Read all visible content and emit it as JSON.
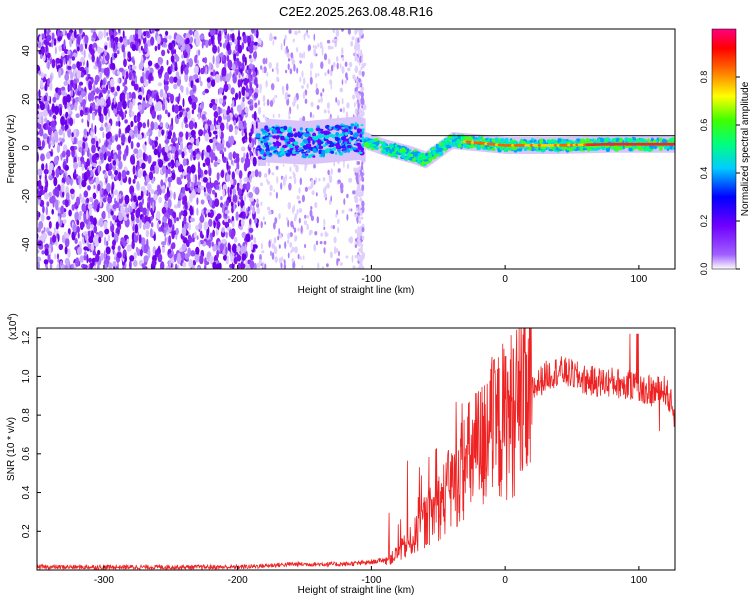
{
  "figure_title": "C2E2.2025.263.08.48.R16",
  "colors": {
    "snr_line": "#ee2222",
    "scatter_purple": "#6a00e8",
    "axis": "#000000"
  },
  "chart_data": [
    {
      "type": "heatmap",
      "title": "C2E2.2025.263.08.48.R16",
      "xlabel": "Height of straight line (km)",
      "ylabel": "Frequency (Hz)",
      "xlim": [
        -350,
        127
      ],
      "ylim": [
        -50,
        49
      ],
      "x_ticks": [
        -300,
        -200,
        -100,
        0,
        100
      ],
      "y_ticks": [
        -40,
        -20,
        0,
        20,
        40
      ],
      "colorbar": {
        "label": "Normalized spectral amplitude",
        "range": [
          0,
          1
        ],
        "ticks": [
          0.0,
          0.2,
          0.4,
          0.6,
          0.8
        ],
        "tick_labels": [
          "0.0",
          "0.2",
          "0.4",
          "0.6",
          "0.8"
        ],
        "colors": [
          "#ffffff",
          "#8b00ff",
          "#0000ff",
          "#00ffff",
          "#00ff00",
          "#ffff00",
          "#ff0000",
          "#ff0080"
        ]
      },
      "regions": [
        {
          "x_range": [
            -350,
            -185
          ],
          "description_level": 0.25
        },
        {
          "x_range": [
            -185,
            -105
          ],
          "frequency_center": 2,
          "spread": 8,
          "level": 0.45
        },
        {
          "x_range": [
            -105,
            127
          ],
          "frequency_center": 1.5,
          "spread": 3,
          "level": 0.85
        }
      ],
      "ridge": [
        {
          "x": -180,
          "y": 3
        },
        {
          "x": -150,
          "y": 2
        },
        {
          "x": -110,
          "y": 4
        },
        {
          "x": -90,
          "y": 0
        },
        {
          "x": -70,
          "y": -3
        },
        {
          "x": -60,
          "y": -5
        },
        {
          "x": -40,
          "y": 3
        },
        {
          "x": -20,
          "y": 2
        },
        {
          "x": 0,
          "y": 1
        },
        {
          "x": 40,
          "y": 1
        },
        {
          "x": 80,
          "y": 1.5
        },
        {
          "x": 127,
          "y": 1.5
        }
      ]
    },
    {
      "type": "line",
      "xlabel": "Height of straight line (km)",
      "ylabel": "SNR (10 * v/v)",
      "y_scale_label": "(x10",
      "y_scale_exp": "4",
      "y_scale_close": ")",
      "xlim": [
        -350,
        127
      ],
      "ylim": [
        0,
        1.25
      ],
      "x_ticks": [
        -300,
        -200,
        -100,
        0,
        100
      ],
      "y_ticks": [
        0.2,
        0.4,
        0.6,
        0.8,
        1.0,
        1.2
      ],
      "envelope": [
        {
          "x": -350,
          "y": 0.015
        },
        {
          "x": -200,
          "y": 0.015
        },
        {
          "x": -185,
          "y": 0.02
        },
        {
          "x": -160,
          "y": 0.03
        },
        {
          "x": -120,
          "y": 0.03
        },
        {
          "x": -100,
          "y": 0.04
        },
        {
          "x": -85,
          "y": 0.06
        },
        {
          "x": -70,
          "y": 0.15
        },
        {
          "x": -60,
          "y": 0.25
        },
        {
          "x": -50,
          "y": 0.33
        },
        {
          "x": -40,
          "y": 0.42
        },
        {
          "x": -30,
          "y": 0.55
        },
        {
          "x": -20,
          "y": 0.62
        },
        {
          "x": -10,
          "y": 0.7
        },
        {
          "x": 0,
          "y": 0.78
        },
        {
          "x": 10,
          "y": 0.84
        },
        {
          "x": 20,
          "y": 0.93
        },
        {
          "x": 30,
          "y": 1.0
        },
        {
          "x": 40,
          "y": 1.03
        },
        {
          "x": 50,
          "y": 1.01
        },
        {
          "x": 60,
          "y": 0.98
        },
        {
          "x": 70,
          "y": 0.97
        },
        {
          "x": 80,
          "y": 0.97
        },
        {
          "x": 90,
          "y": 0.96
        },
        {
          "x": 100,
          "y": 0.94
        },
        {
          "x": 110,
          "y": 0.92
        },
        {
          "x": 120,
          "y": 0.93
        },
        {
          "x": 127,
          "y": 0.8
        }
      ]
    }
  ]
}
